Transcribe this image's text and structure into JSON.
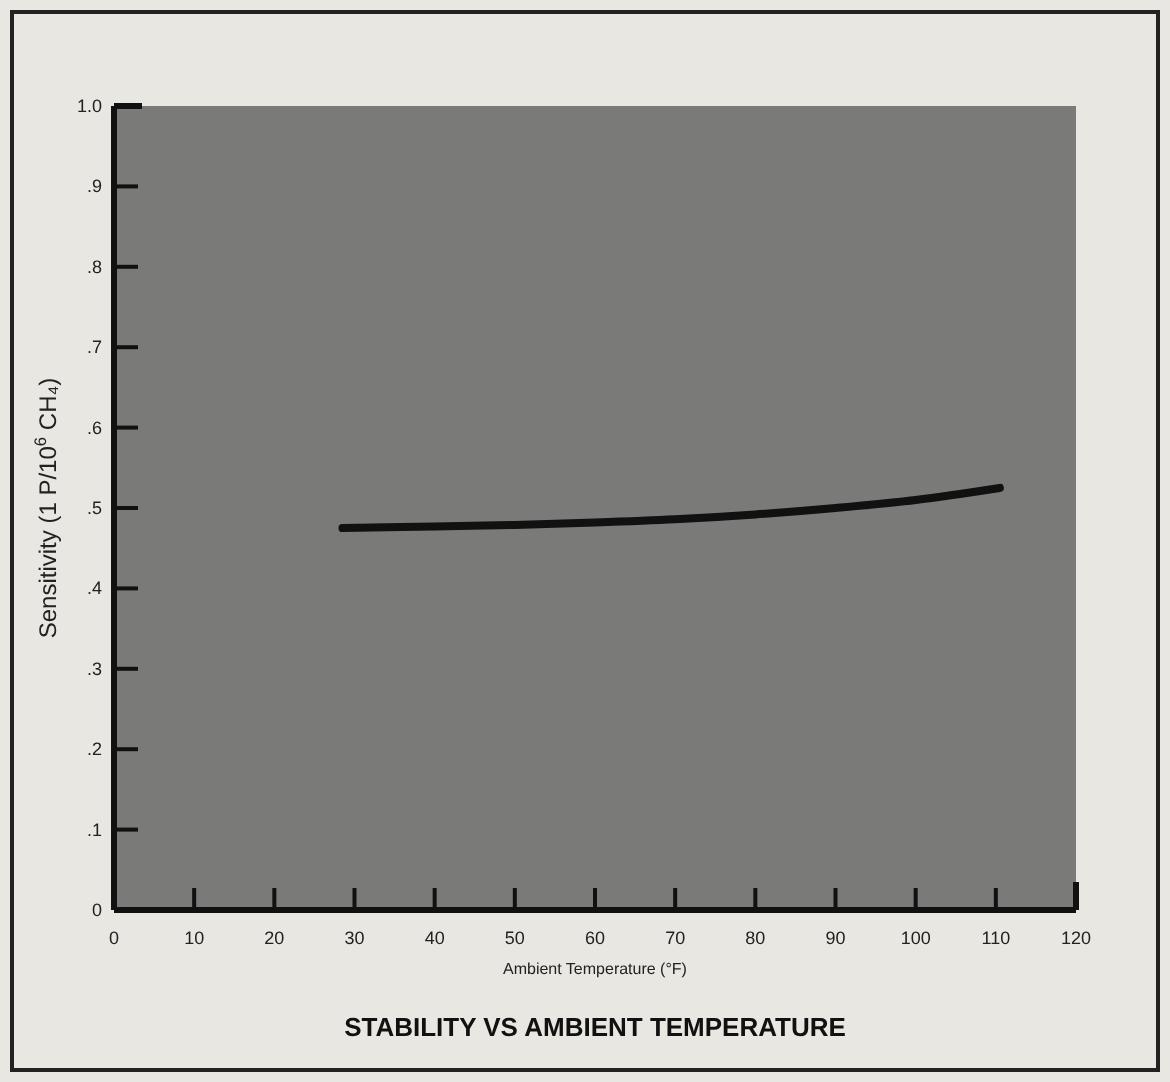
{
  "chart_data": {
    "type": "line",
    "title": "STABILITY VS AMBIENT TEMPERATURE",
    "xlabel": "Ambient Temperature (°F)",
    "ylabel": "Sensitivity (1 P/10$^{6}$ CH₄)",
    "series": [
      {
        "color": "#111111",
        "x": [
          28.5,
          40,
          50,
          60,
          70,
          80,
          90,
          100,
          110.5
        ],
        "values": [
          0.475,
          0.477,
          0.479,
          0.482,
          0.486,
          0.492,
          0.5,
          0.51,
          0.525
        ]
      }
    ],
    "xlim": [
      0,
      120
    ],
    "xticks": [
      0,
      10,
      20,
      30,
      40,
      50,
      60,
      70,
      80,
      90,
      100,
      110,
      120
    ],
    "ylim": [
      0,
      1.0
    ],
    "yticks": [
      0,
      {
        "value": 0.1,
        "label": ".1"
      },
      {
        "value": 0.2,
        "label": ".2"
      },
      {
        "value": 0.3,
        "label": ".3"
      },
      {
        "value": 0.4,
        "label": ".4"
      },
      {
        "value": 0.5,
        "label": ".5"
      },
      {
        "value": 0.6,
        "label": ".6"
      },
      {
        "value": 0.7,
        "label": ".7"
      },
      {
        "value": 0.8,
        "label": ".8"
      },
      {
        "value": 0.9,
        "label": ".9"
      },
      {
        "value": 1.0,
        "label": "1.0"
      }
    ],
    "grid": false,
    "marker": "none",
    "line_style": "solid"
  }
}
